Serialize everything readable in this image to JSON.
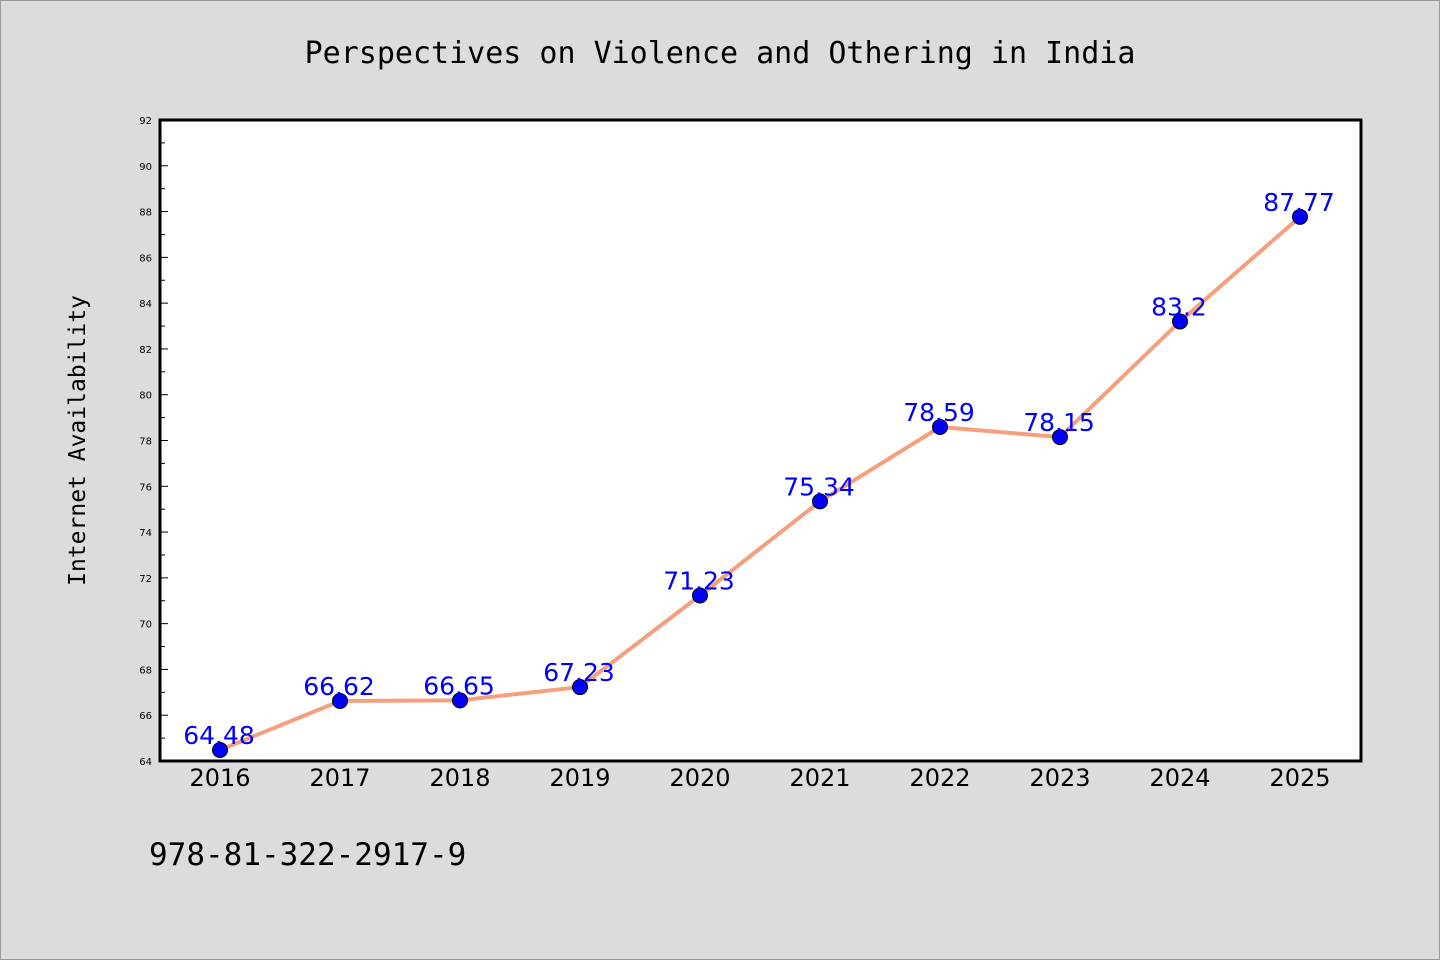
{
  "chart_data": {
    "type": "line",
    "title": "Perspectives on Violence and Othering in India",
    "xlabel": "",
    "ylabel": "Internet Availability",
    "categories": [
      "2016",
      "2017",
      "2018",
      "2019",
      "2020",
      "2021",
      "2022",
      "2023",
      "2024",
      "2025"
    ],
    "series": [
      {
        "values": [
          64.48,
          66.62,
          66.65,
          67.23,
          71.23,
          75.34,
          78.59,
          78.15,
          83.2,
          87.77
        ],
        "data_labels": [
          "64.48",
          "66.62",
          "66.65",
          "67.23",
          "71.23",
          "75.34",
          "78.59",
          "78.15",
          "83.2",
          "87.77"
        ],
        "line_color": "#f4a07f",
        "marker_color": "#0000ff"
      }
    ],
    "ylim": [
      64,
      92
    ],
    "yticks": [
      "64",
      "66",
      "68",
      "70",
      "72",
      "74",
      "76",
      "78",
      "80",
      "82",
      "84",
      "86",
      "88",
      "90",
      "92"
    ],
    "grid": false,
    "legend": "none",
    "background_color": "#dcdcdc",
    "plot_background_color": "#ffffff",
    "label_color": "#0000ff"
  },
  "footer": {
    "isbn": "978-81-322-2917-9"
  }
}
